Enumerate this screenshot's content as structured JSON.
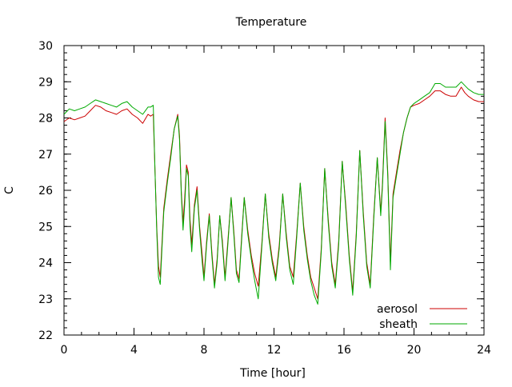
{
  "chart_data": {
    "type": "line",
    "title": "Temperature",
    "xlabel": "Time [hour]",
    "ylabel": "C",
    "xlim": [
      0,
      24
    ],
    "ylim": [
      22,
      30
    ],
    "xticks": [
      0,
      4,
      8,
      12,
      16,
      20,
      24
    ],
    "yticks": [
      22,
      23,
      24,
      25,
      26,
      27,
      28,
      29,
      30
    ],
    "grid": false,
    "legend": "bottom-right",
    "series": [
      {
        "name": "aerosol",
        "color": "#cc0000",
        "x": [
          0,
          0.3,
          0.6,
          0.9,
          1.2,
          1.5,
          1.8,
          2.1,
          2.4,
          2.7,
          3.0,
          3.3,
          3.6,
          3.9,
          4.2,
          4.5,
          4.8,
          4.95,
          5.1,
          5.2,
          5.3,
          5.4,
          5.5,
          5.7,
          5.9,
          6.1,
          6.3,
          6.5,
          6.6,
          6.7,
          6.8,
          6.9,
          7.0,
          7.1,
          7.2,
          7.3,
          7.45,
          7.6,
          7.75,
          7.9,
          8.0,
          8.15,
          8.3,
          8.45,
          8.6,
          8.75,
          8.9,
          9.05,
          9.2,
          9.35,
          9.55,
          9.7,
          9.85,
          10.0,
          10.15,
          10.3,
          10.5,
          10.7,
          10.9,
          11.1,
          11.3,
          11.5,
          11.7,
          11.9,
          12.1,
          12.3,
          12.5,
          12.7,
          12.9,
          13.1,
          13.3,
          13.5,
          13.7,
          13.9,
          14.1,
          14.3,
          14.5,
          14.7,
          14.9,
          15.1,
          15.3,
          15.5,
          15.7,
          15.9,
          16.1,
          16.3,
          16.5,
          16.7,
          16.9,
          17.1,
          17.3,
          17.5,
          17.7,
          17.9,
          18.1,
          18.2,
          18.35,
          18.5,
          18.65,
          18.8,
          19.0,
          19.2,
          19.4,
          19.6,
          19.8,
          20.0,
          20.3,
          20.6,
          20.9,
          21.2,
          21.5,
          21.8,
          22.1,
          22.4,
          22.7,
          22.9,
          23.1,
          23.4,
          23.7,
          24.0
        ],
        "y": [
          27.9,
          28.0,
          27.95,
          28.0,
          28.05,
          28.2,
          28.35,
          28.3,
          28.2,
          28.15,
          28.1,
          28.2,
          28.25,
          28.1,
          28.0,
          27.85,
          28.1,
          28.05,
          28.1,
          26.5,
          25.0,
          23.9,
          23.6,
          25.5,
          26.3,
          27.0,
          27.7,
          28.1,
          27.5,
          26.0,
          25.1,
          25.8,
          26.7,
          26.5,
          25.2,
          24.5,
          25.6,
          26.1,
          25.0,
          24.2,
          23.6,
          24.6,
          25.35,
          24.3,
          23.4,
          24.1,
          25.3,
          24.6,
          23.6,
          24.5,
          25.8,
          24.9,
          23.8,
          23.55,
          24.7,
          25.8,
          24.9,
          24.2,
          23.7,
          23.35,
          24.5,
          25.9,
          24.8,
          24.1,
          23.6,
          24.5,
          25.9,
          24.8,
          23.9,
          23.6,
          24.8,
          26.2,
          25.0,
          24.2,
          23.6,
          23.3,
          23.0,
          24.4,
          26.6,
          25.2,
          24.0,
          23.4,
          24.6,
          26.8,
          25.6,
          24.2,
          23.2,
          24.8,
          27.1,
          25.4,
          24.0,
          23.4,
          25.3,
          26.9,
          25.4,
          26.2,
          28.0,
          26.5,
          24.0,
          25.9,
          26.5,
          27.1,
          27.6,
          28.0,
          28.3,
          28.35,
          28.4,
          28.5,
          28.6,
          28.75,
          28.75,
          28.65,
          28.6,
          28.6,
          28.85,
          28.7,
          28.6,
          28.5,
          28.45,
          28.45
        ]
      },
      {
        "name": "sheath",
        "color": "#00aa00",
        "x": [
          0,
          0.3,
          0.6,
          0.9,
          1.2,
          1.5,
          1.8,
          2.1,
          2.4,
          2.7,
          3.0,
          3.3,
          3.6,
          3.9,
          4.2,
          4.5,
          4.8,
          4.95,
          5.1,
          5.2,
          5.3,
          5.4,
          5.5,
          5.7,
          5.9,
          6.1,
          6.3,
          6.5,
          6.6,
          6.7,
          6.8,
          6.9,
          7.0,
          7.1,
          7.2,
          7.3,
          7.45,
          7.6,
          7.75,
          7.9,
          8.0,
          8.15,
          8.3,
          8.45,
          8.6,
          8.75,
          8.9,
          9.05,
          9.2,
          9.35,
          9.55,
          9.7,
          9.85,
          10.0,
          10.15,
          10.3,
          10.5,
          10.7,
          10.9,
          11.1,
          11.3,
          11.5,
          11.7,
          11.9,
          12.1,
          12.3,
          12.5,
          12.7,
          12.9,
          13.1,
          13.3,
          13.5,
          13.7,
          13.9,
          14.1,
          14.3,
          14.5,
          14.7,
          14.9,
          15.1,
          15.3,
          15.5,
          15.7,
          15.9,
          16.1,
          16.3,
          16.5,
          16.7,
          16.9,
          17.1,
          17.3,
          17.5,
          17.7,
          17.9,
          18.1,
          18.2,
          18.35,
          18.5,
          18.65,
          18.8,
          19.0,
          19.2,
          19.4,
          19.6,
          19.8,
          20.0,
          20.3,
          20.6,
          20.9,
          21.2,
          21.5,
          21.8,
          22.1,
          22.4,
          22.7,
          22.9,
          23.1,
          23.4,
          23.7,
          24.0
        ],
        "y": [
          28.1,
          28.25,
          28.2,
          28.25,
          28.3,
          28.4,
          28.5,
          28.45,
          28.4,
          28.35,
          28.3,
          28.4,
          28.45,
          28.3,
          28.2,
          28.1,
          28.3,
          28.3,
          28.35,
          26.5,
          24.9,
          23.6,
          23.4,
          25.4,
          26.2,
          26.9,
          27.7,
          28.05,
          27.4,
          25.9,
          24.9,
          25.6,
          26.6,
          26.4,
          25.0,
          24.3,
          25.5,
          26.0,
          24.9,
          24.0,
          23.5,
          24.5,
          25.3,
          24.2,
          23.3,
          24.0,
          25.3,
          24.5,
          23.5,
          24.4,
          25.8,
          24.8,
          23.7,
          23.45,
          24.6,
          25.8,
          24.8,
          24.1,
          23.5,
          23.0,
          24.4,
          25.9,
          24.7,
          24.0,
          23.5,
          24.4,
          25.9,
          24.7,
          23.8,
          23.4,
          24.7,
          26.2,
          24.9,
          24.1,
          23.5,
          23.1,
          22.85,
          24.3,
          26.6,
          25.1,
          23.9,
          23.3,
          24.5,
          26.8,
          25.5,
          24.1,
          23.1,
          24.7,
          27.1,
          25.3,
          23.9,
          23.3,
          25.2,
          26.9,
          25.3,
          26.1,
          27.9,
          26.4,
          23.8,
          25.8,
          26.4,
          27.0,
          27.6,
          28.0,
          28.3,
          28.4,
          28.5,
          28.6,
          28.7,
          28.95,
          28.95,
          28.85,
          28.85,
          28.85,
          29.0,
          28.9,
          28.8,
          28.7,
          28.65,
          28.65
        ]
      }
    ]
  }
}
